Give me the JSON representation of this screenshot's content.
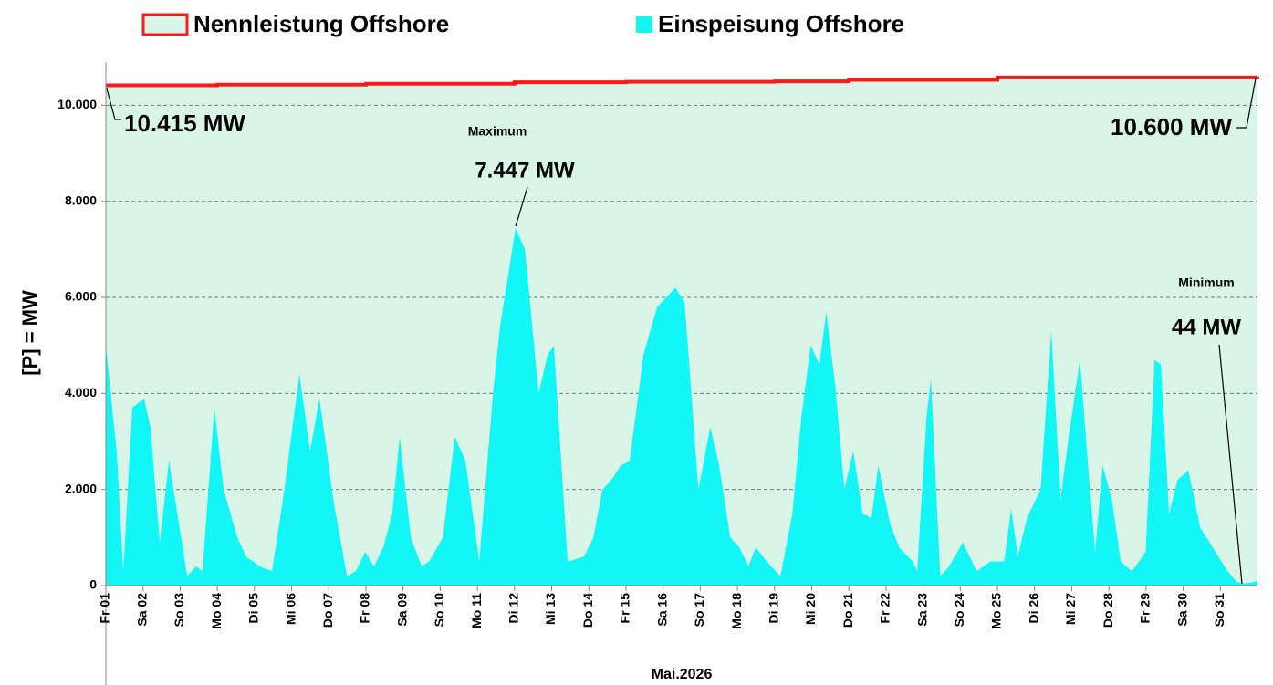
{
  "chart_data": {
    "type": "area",
    "y_label": "[P] = MW",
    "x_label": "Mai.2026",
    "xlim": [
      0,
      31
    ],
    "xticks": [
      {
        "value": 0,
        "label": "Fr 01"
      },
      {
        "value": 1,
        "label": "Sa 02"
      },
      {
        "value": 2,
        "label": "So 03"
      },
      {
        "value": 3,
        "label": "Mo 04"
      },
      {
        "value": 4,
        "label": "Di 05"
      },
      {
        "value": 5,
        "label": "Mi 06"
      },
      {
        "value": 6,
        "label": "Do 07"
      },
      {
        "value": 7,
        "label": "Fr 08"
      },
      {
        "value": 8,
        "label": "Sa 09"
      },
      {
        "value": 9,
        "label": "So 10"
      },
      {
        "value": 10,
        "label": "Mo 11"
      },
      {
        "value": 11,
        "label": "Di 12"
      },
      {
        "value": 12,
        "label": "Mi 13"
      },
      {
        "value": 13,
        "label": "Do 14"
      },
      {
        "value": 14,
        "label": "Fr 15"
      },
      {
        "value": 15,
        "label": "Sa 16"
      },
      {
        "value": 16,
        "label": "So 17"
      },
      {
        "value": 17,
        "label": "Mo 18"
      },
      {
        "value": 18,
        "label": "Di 19"
      },
      {
        "value": 19,
        "label": "Mi 20"
      },
      {
        "value": 20,
        "label": "Do 21"
      },
      {
        "value": 21,
        "label": "Fr 22"
      },
      {
        "value": 22,
        "label": "Sa 23"
      },
      {
        "value": 23,
        "label": "So 24"
      },
      {
        "value": 24,
        "label": "Mo 25"
      },
      {
        "value": 25,
        "label": "Di 26"
      },
      {
        "value": 26,
        "label": "Mi 27"
      },
      {
        "value": 27,
        "label": "Do 28"
      },
      {
        "value": 28,
        "label": "Fr 29"
      },
      {
        "value": 29,
        "label": "Sa 30"
      },
      {
        "value": 30,
        "label": "So 31"
      }
    ],
    "ylim": [
      0,
      10900
    ],
    "yticks": [
      0,
      {
        "value": 2000,
        "label": "2.000"
      },
      {
        "value": 4000,
        "label": "4.000"
      },
      {
        "value": 6000,
        "label": "6.000"
      },
      {
        "value": 8000,
        "label": "8.000"
      },
      {
        "value": 10000,
        "label": "10.000"
      }
    ],
    "grid": true,
    "legend": "top",
    "series": [
      {
        "name": "Nennleistung Offshore",
        "color": "#ff1a1a",
        "fill": "#d9f5e8",
        "x": [
          0,
          3,
          7,
          11,
          14,
          18,
          20,
          24,
          31
        ],
        "values": [
          10415,
          10430,
          10450,
          10480,
          10490,
          10500,
          10530,
          10580,
          10600
        ]
      },
      {
        "name": "Einspeisung Offshore",
        "color": "#14f5f5",
        "x": [
          0,
          0.29,
          0.47,
          0.71,
          1.03,
          1.2,
          1.45,
          1.7,
          2.19,
          2.43,
          2.6,
          2.92,
          3.17,
          3.54,
          3.78,
          4.15,
          4.47,
          4.77,
          5.21,
          5.5,
          5.75,
          6.12,
          6.49,
          6.73,
          6.98,
          7.22,
          7.47,
          7.71,
          7.91,
          8.21,
          8.5,
          8.7,
          9.07,
          9.39,
          9.68,
          10.05,
          10.42,
          10.61,
          11.03,
          11.28,
          11.65,
          11.89,
          12.06,
          12.43,
          12.87,
          13.12,
          13.37,
          13.61,
          13.86,
          14.1,
          14.47,
          14.84,
          15.33,
          15.58,
          15.95,
          16.27,
          16.51,
          16.81,
          17.05,
          17.3,
          17.49,
          17.79,
          18.16,
          18.48,
          18.72,
          18.97,
          19.21,
          19.39,
          19.63,
          19.88,
          20.12,
          20.37,
          20.61,
          20.79,
          21.11,
          21.35,
          21.72,
          21.84,
          22.09,
          22.21,
          22.46,
          22.7,
          23.07,
          23.44,
          23.81,
          24.18,
          24.37,
          24.55,
          24.79,
          25.16,
          25.45,
          25.7,
          25.9,
          26.22,
          26.44,
          26.63,
          26.83,
          27.08,
          27.32,
          27.62,
          27.99,
          28.23,
          28.4,
          28.62,
          28.85,
          29.14,
          29.46,
          29.71,
          29.95,
          30.2,
          30.44,
          30.61,
          30.81,
          31
        ],
        "values": [
          5000,
          2800,
          300,
          3700,
          3900,
          3300,
          900,
          2600,
          200,
          400,
          300,
          3700,
          2000,
          1000,
          600,
          400,
          300,
          1800,
          4400,
          2800,
          3900,
          1800,
          200,
          300,
          700,
          400,
          800,
          1500,
          3100,
          1000,
          400,
          500,
          1000,
          3100,
          2600,
          500,
          4000,
          5400,
          7447,
          7000,
          4000,
          4800,
          5000,
          500,
          600,
          1000,
          2000,
          2200,
          2500,
          2600,
          4800,
          5800,
          6200,
          5900,
          2000,
          3300,
          2500,
          1000,
          800,
          400,
          800,
          500,
          200,
          1500,
          3500,
          5000,
          4600,
          5700,
          4200,
          2000,
          2800,
          1500,
          1400,
          2500,
          1300,
          800,
          500,
          300,
          3500,
          4300,
          200,
          400,
          900,
          300,
          500,
          500,
          1600,
          600,
          1400,
          2000,
          5300,
          1800,
          3000,
          4700,
          2500,
          700,
          2500,
          1800,
          500,
          300,
          700,
          4700,
          4600,
          1500,
          2200,
          2400,
          1200,
          900,
          600,
          300,
          80,
          44,
          60,
          100
        ]
      }
    ],
    "annotations": [
      {
        "text": "10.415 MW"
      },
      {
        "text": "10.600 MW"
      },
      {
        "text": "Maximum"
      },
      {
        "text": "7.447 MW"
      },
      {
        "text": "Minimum"
      },
      {
        "text": "44 MW"
      }
    ]
  }
}
